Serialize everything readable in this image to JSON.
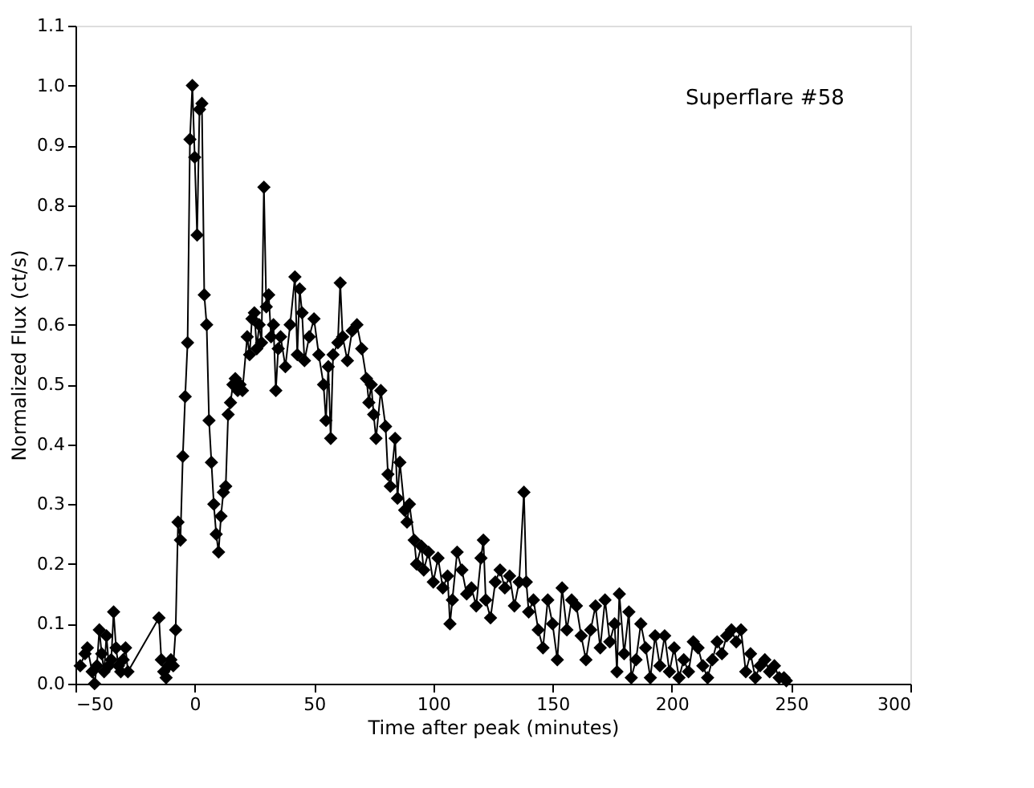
{
  "chart_data": {
    "type": "line",
    "xlabel": "Time after peak (minutes)",
    "ylabel": "Normalized Flux (ct/s)",
    "annotations": [
      "Superflare #58"
    ],
    "marker": "diamond",
    "line_style": "solid",
    "grid": false,
    "xlim": [
      -50,
      300
    ],
    "xticks": [
      -50,
      0,
      50,
      100,
      150,
      200,
      250,
      300
    ],
    "ylim": [
      0,
      1.1
    ],
    "yticks": [
      {
        "value": 0,
        "label": "0.0"
      },
      0.1,
      0.2,
      0.3,
      0.4,
      0.5,
      0.6,
      0.7,
      0.8,
      0.9,
      {
        "value": 1,
        "label": "1.0"
      },
      1.1
    ],
    "series": [
      {
        "color": "#000000",
        "x": [
          -48,
          -46,
          -45,
          -43,
          -42,
          -41,
          -40,
          -39,
          -38,
          -37,
          -36,
          -35,
          -34,
          -33,
          -32,
          -31,
          -30,
          -29,
          -28,
          -15,
          -14,
          -13,
          -12,
          -11,
          -10,
          -9,
          -8,
          -7,
          -6,
          -5,
          -4,
          -3,
          -2,
          -1,
          0,
          1,
          2,
          3,
          4,
          5,
          6,
          7,
          8,
          9,
          10,
          11,
          12,
          13,
          14,
          15,
          16,
          17,
          18,
          19,
          20,
          22,
          23,
          24,
          25,
          26,
          27,
          28,
          29,
          30,
          31,
          32,
          33,
          34,
          35,
          36,
          38,
          40,
          42,
          43,
          44,
          45,
          46,
          48,
          50,
          52,
          54,
          55,
          56,
          57,
          58,
          60,
          61,
          62,
          64,
          66,
          68,
          70,
          72,
          73,
          74,
          75,
          76,
          78,
          80,
          81,
          82,
          84,
          85,
          86,
          88,
          89,
          90,
          92,
          93,
          95,
          96,
          98,
          100,
          102,
          104,
          106,
          107,
          108,
          110,
          112,
          114,
          116,
          118,
          120,
          121,
          122,
          124,
          126,
          128,
          130,
          132,
          134,
          136,
          138,
          139,
          140,
          142,
          144,
          146,
          148,
          150,
          152,
          154,
          156,
          158,
          160,
          162,
          164,
          166,
          168,
          170,
          172,
          174,
          176,
          177,
          178,
          180,
          182,
          183,
          185,
          187,
          189,
          191,
          193,
          195,
          197,
          199,
          201,
          203,
          205,
          207,
          209,
          211,
          213,
          215,
          217,
          219,
          221,
          223,
          225,
          227,
          229,
          231,
          233,
          235,
          237,
          239,
          241,
          243,
          245,
          247,
          248
        ],
        "values": [
          0.03,
          0.05,
          0.06,
          0.02,
          0.0,
          0.03,
          0.09,
          0.05,
          0.02,
          0.08,
          0.03,
          0.04,
          0.12,
          0.06,
          0.03,
          0.02,
          0.04,
          0.06,
          0.02,
          0.11,
          0.04,
          0.02,
          0.01,
          0.03,
          0.04,
          0.03,
          0.09,
          0.27,
          0.24,
          0.38,
          0.48,
          0.57,
          0.91,
          1.0,
          0.88,
          0.75,
          0.96,
          0.97,
          0.65,
          0.6,
          0.44,
          0.37,
          0.3,
          0.25,
          0.22,
          0.28,
          0.32,
          0.33,
          0.45,
          0.47,
          0.5,
          0.51,
          0.49,
          0.5,
          0.49,
          0.58,
          0.55,
          0.61,
          0.62,
          0.56,
          0.6,
          0.57,
          0.83,
          0.63,
          0.65,
          0.58,
          0.6,
          0.49,
          0.56,
          0.58,
          0.53,
          0.6,
          0.68,
          0.55,
          0.66,
          0.62,
          0.54,
          0.58,
          0.61,
          0.55,
          0.5,
          0.44,
          0.53,
          0.41,
          0.55,
          0.57,
          0.67,
          0.58,
          0.54,
          0.59,
          0.6,
          0.56,
          0.51,
          0.47,
          0.5,
          0.45,
          0.41,
          0.49,
          0.43,
          0.35,
          0.33,
          0.41,
          0.31,
          0.37,
          0.29,
          0.27,
          0.3,
          0.24,
          0.2,
          0.23,
          0.19,
          0.22,
          0.17,
          0.21,
          0.16,
          0.18,
          0.1,
          0.14,
          0.22,
          0.19,
          0.15,
          0.16,
          0.13,
          0.21,
          0.24,
          0.14,
          0.11,
          0.17,
          0.19,
          0.16,
          0.18,
          0.13,
          0.17,
          0.32,
          0.17,
          0.12,
          0.14,
          0.09,
          0.06,
          0.14,
          0.1,
          0.04,
          0.16,
          0.09,
          0.14,
          0.13,
          0.08,
          0.04,
          0.09,
          0.13,
          0.06,
          0.14,
          0.07,
          0.1,
          0.02,
          0.15,
          0.05,
          0.12,
          0.01,
          0.04,
          0.1,
          0.06,
          0.01,
          0.08,
          0.03,
          0.08,
          0.02,
          0.06,
          0.01,
          0.04,
          0.02,
          0.07,
          0.06,
          0.03,
          0.01,
          0.04,
          0.07,
          0.05,
          0.08,
          0.09,
          0.07,
          0.09,
          0.02,
          0.05,
          0.01,
          0.03,
          0.04,
          0.02,
          0.03,
          0.01,
          0.01,
          0.005
        ]
      }
    ]
  }
}
